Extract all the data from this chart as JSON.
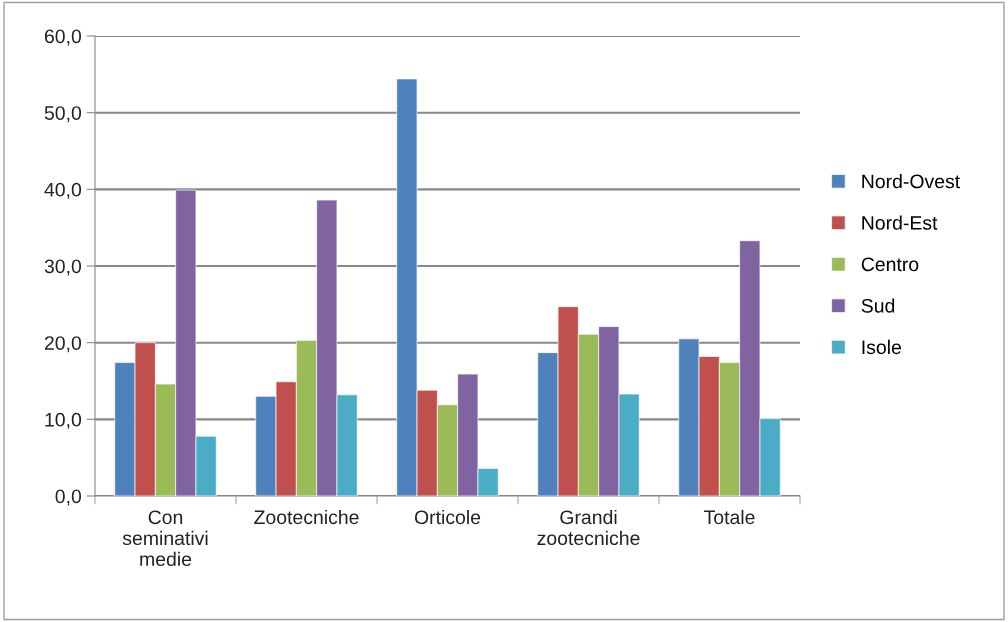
{
  "chart_data": {
    "type": "bar",
    "categories": [
      "Con seminativi medie",
      "Zootecniche",
      "Orticole",
      "Grandi zootecniche",
      "Totale"
    ],
    "series": [
      {
        "name": "Nord-Ovest",
        "color": "#4f81bd",
        "values": [
          17.4,
          13.0,
          54.4,
          18.7,
          20.5
        ]
      },
      {
        "name": "Nord-Est",
        "color": "#c0504d",
        "values": [
          20.0,
          14.9,
          13.8,
          24.7,
          18.2
        ]
      },
      {
        "name": "Centro",
        "color": "#9bbb59",
        "values": [
          14.6,
          20.3,
          11.9,
          21.1,
          17.4
        ]
      },
      {
        "name": "Sud",
        "color": "#8064a2",
        "values": [
          39.9,
          38.6,
          15.9,
          22.1,
          33.3
        ]
      },
      {
        "name": "Isole",
        "color": "#4bacc6",
        "values": [
          7.8,
          13.2,
          3.6,
          13.3,
          10.1
        ]
      }
    ],
    "ylim": [
      0,
      60
    ],
    "yticks": [
      {
        "value": 0,
        "label": "0,0"
      },
      {
        "value": 10,
        "label": "10,0"
      },
      {
        "value": 20,
        "label": "20,0"
      },
      {
        "value": 30,
        "label": "30,0"
      },
      {
        "value": 40,
        "label": "40,0"
      },
      {
        "value": 50,
        "label": "50,0"
      },
      {
        "value": 60,
        "label": "60,0"
      }
    ],
    "grid": "y",
    "legend": "right"
  }
}
